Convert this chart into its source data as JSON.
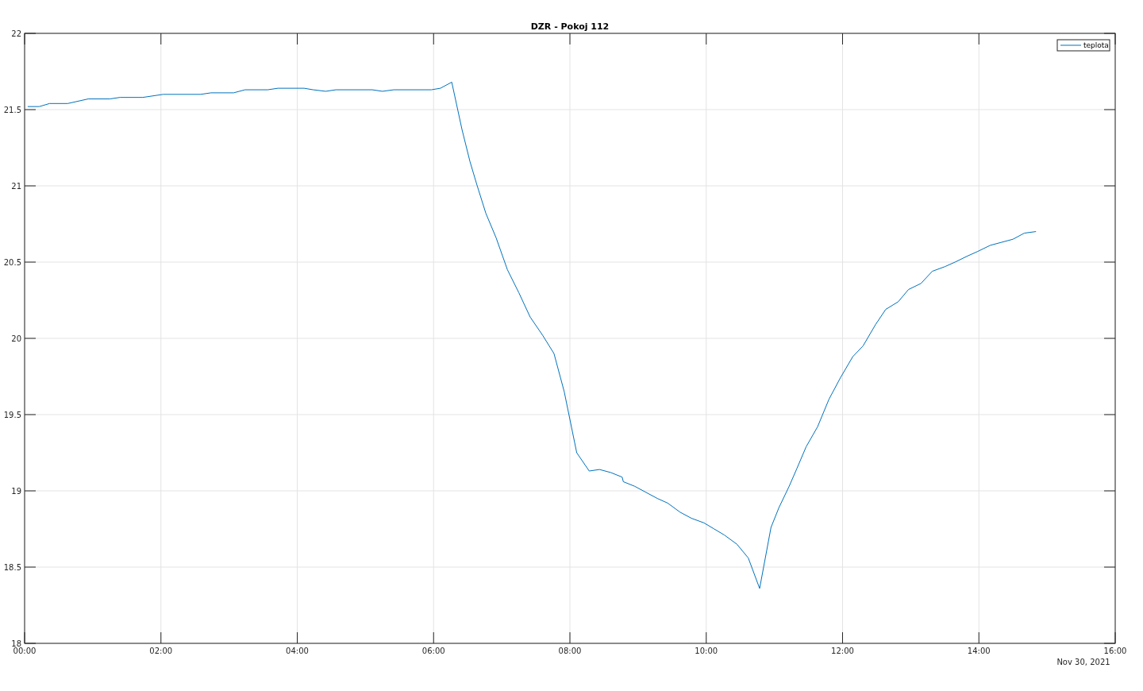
{
  "chart_data": {
    "type": "line",
    "title": "DZR - Pokoj 112",
    "x": [
      "2021-11-30T00:03",
      "2021-11-30T00:13",
      "2021-11-30T00:22",
      "2021-11-30T00:38",
      "2021-11-30T00:56",
      "2021-11-30T01:15",
      "2021-11-30T01:24",
      "2021-11-30T01:44",
      "2021-11-30T02:02",
      "2021-11-30T02:35",
      "2021-11-30T02:44",
      "2021-11-30T03:04",
      "2021-11-30T03:14",
      "2021-11-30T03:34",
      "2021-11-30T03:43",
      "2021-11-30T04:06",
      "2021-11-30T04:14",
      "2021-11-30T04:25",
      "2021-11-30T04:34",
      "2021-11-30T05:06",
      "2021-11-30T05:15",
      "2021-11-30T05:25",
      "2021-11-30T05:58",
      "2021-11-30T06:06",
      "2021-11-30T06:16",
      "2021-11-30T06:25",
      "2021-11-30T06:32",
      "2021-11-30T06:38",
      "2021-11-30T06:46",
      "2021-11-30T06:55",
      "2021-11-30T07:05",
      "2021-11-30T07:15",
      "2021-11-30T07:25",
      "2021-11-30T07:36",
      "2021-11-30T07:46",
      "2021-11-30T07:55",
      "2021-11-30T08:06",
      "2021-11-30T08:17",
      "2021-11-30T08:26",
      "2021-11-30T08:36",
      "2021-11-30T08:46",
      "2021-11-30T08:47",
      "2021-11-30T08:57",
      "2021-11-30T09:07",
      "2021-11-30T09:17",
      "2021-11-30T09:26",
      "2021-11-30T09:37",
      "2021-11-30T09:47",
      "2021-11-30T09:58",
      "2021-11-30T10:07",
      "2021-11-30T10:16",
      "2021-11-30T10:27",
      "2021-11-30T10:37",
      "2021-11-30T10:47",
      "2021-11-30T10:57",
      "2021-11-30T11:04",
      "2021-11-30T11:13",
      "2021-11-30T11:20",
      "2021-11-30T11:28",
      "2021-11-30T11:38",
      "2021-11-30T11:48",
      "2021-11-30T11:58",
      "2021-11-30T12:09",
      "2021-11-30T12:18",
      "2021-11-30T12:29",
      "2021-11-30T12:38",
      "2021-11-30T12:49",
      "2021-11-30T12:58",
      "2021-11-30T13:09",
      "2021-11-30T13:19",
      "2021-11-30T13:30",
      "2021-11-30T13:39",
      "2021-11-30T13:50",
      "2021-11-30T13:59",
      "2021-11-30T14:10",
      "2021-11-30T14:20",
      "2021-11-30T14:30",
      "2021-11-30T14:40",
      "2021-11-30T14:50"
    ],
    "series": [
      {
        "name": "teplota",
        "color": "#0072bd",
        "values": [
          21.52,
          21.52,
          21.54,
          21.54,
          21.57,
          21.57,
          21.58,
          21.58,
          21.6,
          21.6,
          21.61,
          21.61,
          21.63,
          21.63,
          21.64,
          21.64,
          21.63,
          21.62,
          21.63,
          21.63,
          21.62,
          21.63,
          21.63,
          21.64,
          21.68,
          21.37,
          21.16,
          21.01,
          20.82,
          20.66,
          20.45,
          20.3,
          20.14,
          20.02,
          19.9,
          19.65,
          19.25,
          19.13,
          19.14,
          19.12,
          19.09,
          19.06,
          19.03,
          18.99,
          18.95,
          18.92,
          18.86,
          18.82,
          18.79,
          18.75,
          18.71,
          18.65,
          18.56,
          18.36,
          18.76,
          18.89,
          19.03,
          19.15,
          19.29,
          19.42,
          19.6,
          19.74,
          19.88,
          19.95,
          20.09,
          20.19,
          20.24,
          20.32,
          20.36,
          20.44,
          20.47,
          20.5,
          20.54,
          20.57,
          20.61,
          20.63,
          20.65,
          20.69,
          20.7
        ]
      }
    ],
    "xlim": [
      "2021-11-30T00:00",
      "2021-11-30T16:00"
    ],
    "xticks": [
      {
        "value": "2021-11-30T00:00",
        "label": "00:00"
      },
      {
        "value": "2021-11-30T02:00",
        "label": "02:00"
      },
      {
        "value": "2021-11-30T04:00",
        "label": "04:00"
      },
      {
        "value": "2021-11-30T06:00",
        "label": "06:00"
      },
      {
        "value": "2021-11-30T08:00",
        "label": "08:00"
      },
      {
        "value": "2021-11-30T10:00",
        "label": "10:00"
      },
      {
        "value": "2021-11-30T12:00",
        "label": "12:00"
      },
      {
        "value": "2021-11-30T14:00",
        "label": "14:00"
      },
      {
        "value": "2021-11-30T16:00",
        "label": "16:00"
      }
    ],
    "ylim": [
      18,
      22
    ],
    "yticks": [
      18,
      18.5,
      19,
      19.5,
      20,
      20.5,
      21,
      21.5,
      22
    ],
    "grid": true,
    "legend": "top right",
    "annotations": [
      "Nov 30, 2021"
    ]
  }
}
